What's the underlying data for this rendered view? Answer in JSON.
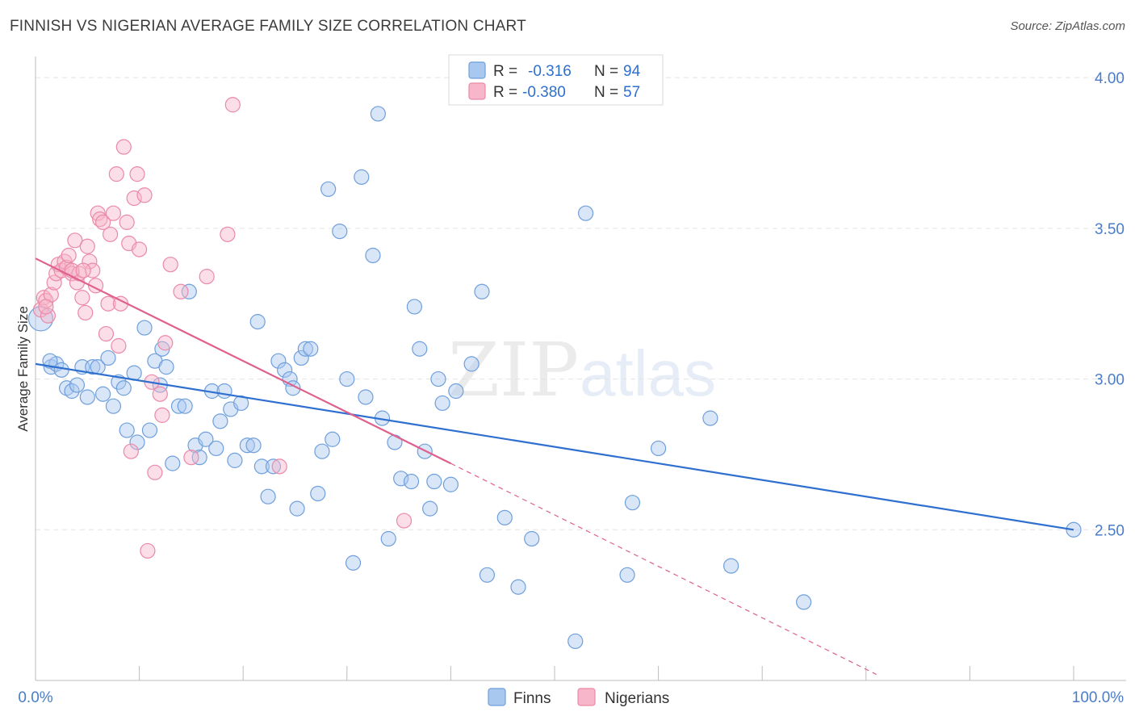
{
  "title": "FINNISH VS NIGERIAN AVERAGE FAMILY SIZE CORRELATION CHART",
  "source": "Source: ZipAtlas.com",
  "watermark": {
    "left": "ZIP",
    "right": "atlas"
  },
  "colors": {
    "finns_fill": "#a9c8ef",
    "finns_stroke": "#6f9fdc",
    "finns_line": "#2f6fcf",
    "nigerians_fill": "#f7b6c9",
    "nigerians_stroke": "#eb89a8",
    "nigerians_line": "#e0608d",
    "tick_label": "#4a7cc7",
    "grid": "#e3e3e3"
  },
  "stats_legend": [
    {
      "r_label": "R =",
      "r_value": "-0.316",
      "n_label": "N =",
      "n_value": "94"
    },
    {
      "r_label": "R =",
      "r_value": "-0.380",
      "n_label": "N =",
      "n_value": "57"
    }
  ],
  "chart_data": {
    "type": "scatter",
    "ylabel": "Average Family Size",
    "xlabel": "",
    "x_tick_labels": [
      "0.0%",
      "100.0%"
    ],
    "y_tick_labels": [
      "2.50",
      "3.00",
      "3.50",
      "4.00"
    ],
    "xlim": [
      0,
      100
    ],
    "ylim": [
      2.0,
      4.07
    ],
    "y_ticks": [
      2.5,
      3.0,
      3.5,
      4.0
    ],
    "grid": true,
    "legend": "bottom-center",
    "series": [
      {
        "name": "Finns",
        "trend": {
          "x": [
            0,
            100
          ],
          "y": [
            3.05,
            2.5
          ]
        },
        "points": [
          [
            0.5,
            3.2
          ],
          [
            1.5,
            3.04
          ],
          [
            2.0,
            3.05
          ],
          [
            2.5,
            3.03
          ],
          [
            3.0,
            2.97
          ],
          [
            3.5,
            2.96
          ],
          [
            4.0,
            2.98
          ],
          [
            4.5,
            3.04
          ],
          [
            5.0,
            2.94
          ],
          [
            5.5,
            3.04
          ],
          [
            6.0,
            3.04
          ],
          [
            6.5,
            2.95
          ],
          [
            7.0,
            3.07
          ],
          [
            7.5,
            2.91
          ],
          [
            8.0,
            2.99
          ],
          [
            8.5,
            2.97
          ],
          [
            8.8,
            2.83
          ],
          [
            9.5,
            3.02
          ],
          [
            9.8,
            2.79
          ],
          [
            10.5,
            3.17
          ],
          [
            11.0,
            2.83
          ],
          [
            11.5,
            3.06
          ],
          [
            12.0,
            2.98
          ],
          [
            12.2,
            3.1
          ],
          [
            12.6,
            3.04
          ],
          [
            13.2,
            2.72
          ],
          [
            13.8,
            2.91
          ],
          [
            14.4,
            2.91
          ],
          [
            14.8,
            3.29
          ],
          [
            15.4,
            2.78
          ],
          [
            15.8,
            2.74
          ],
          [
            16.4,
            2.8
          ],
          [
            17.0,
            2.96
          ],
          [
            17.4,
            2.77
          ],
          [
            17.8,
            2.86
          ],
          [
            18.2,
            2.96
          ],
          [
            18.8,
            2.9
          ],
          [
            19.2,
            2.73
          ],
          [
            19.8,
            2.92
          ],
          [
            20.4,
            2.78
          ],
          [
            21.0,
            2.78
          ],
          [
            21.4,
            3.19
          ],
          [
            21.8,
            2.71
          ],
          [
            22.4,
            2.61
          ],
          [
            22.9,
            2.71
          ],
          [
            23.4,
            3.06
          ],
          [
            24.0,
            3.03
          ],
          [
            24.5,
            3.0
          ],
          [
            24.8,
            2.97
          ],
          [
            25.2,
            2.57
          ],
          [
            25.6,
            3.07
          ],
          [
            26.0,
            3.1
          ],
          [
            26.5,
            3.1
          ],
          [
            27.2,
            2.62
          ],
          [
            27.6,
            2.76
          ],
          [
            28.2,
            3.63
          ],
          [
            28.6,
            2.8
          ],
          [
            29.3,
            3.49
          ],
          [
            30.0,
            3.0
          ],
          [
            30.6,
            2.39
          ],
          [
            31.4,
            3.67
          ],
          [
            31.8,
            2.94
          ],
          [
            32.5,
            3.41
          ],
          [
            33.0,
            3.88
          ],
          [
            33.4,
            2.87
          ],
          [
            34.0,
            2.47
          ],
          [
            34.6,
            2.79
          ],
          [
            35.2,
            2.67
          ],
          [
            36.2,
            2.66
          ],
          [
            36.5,
            3.24
          ],
          [
            37.0,
            3.1
          ],
          [
            37.5,
            2.76
          ],
          [
            38.0,
            2.57
          ],
          [
            38.4,
            2.66
          ],
          [
            38.8,
            3.0
          ],
          [
            39.2,
            2.92
          ],
          [
            40.0,
            2.65
          ],
          [
            40.5,
            2.96
          ],
          [
            42.0,
            3.05
          ],
          [
            43.0,
            3.29
          ],
          [
            43.5,
            2.35
          ],
          [
            45.2,
            2.54
          ],
          [
            46.5,
            2.31
          ],
          [
            47.8,
            2.47
          ],
          [
            52.0,
            2.13
          ],
          [
            53.0,
            3.55
          ],
          [
            57.0,
            2.35
          ],
          [
            57.5,
            2.59
          ],
          [
            60.0,
            2.77
          ],
          [
            65.0,
            2.87
          ],
          [
            67.0,
            2.38
          ],
          [
            74.0,
            2.26
          ],
          [
            100.0,
            2.5
          ],
          [
            1.4,
            3.06
          ]
        ]
      },
      {
        "name": "Nigerians",
        "trend": {
          "x": [
            0,
            40
          ],
          "y": [
            3.4,
            2.72
          ]
        },
        "dashed_extension": {
          "x": [
            40,
            81
          ],
          "y": [
            2.72,
            2.02
          ]
        },
        "points": [
          [
            0.5,
            3.23
          ],
          [
            0.8,
            3.27
          ],
          [
            1.0,
            3.26
          ],
          [
            1.2,
            3.21
          ],
          [
            1.5,
            3.28
          ],
          [
            1.8,
            3.32
          ],
          [
            2.0,
            3.35
          ],
          [
            2.2,
            3.38
          ],
          [
            2.5,
            3.36
          ],
          [
            2.8,
            3.39
          ],
          [
            3.0,
            3.37
          ],
          [
            3.2,
            3.41
          ],
          [
            3.5,
            3.35
          ],
          [
            3.8,
            3.46
          ],
          [
            4.0,
            3.32
          ],
          [
            4.2,
            3.35
          ],
          [
            4.5,
            3.27
          ],
          [
            4.8,
            3.22
          ],
          [
            5.0,
            3.44
          ],
          [
            5.2,
            3.39
          ],
          [
            5.5,
            3.36
          ],
          [
            5.8,
            3.31
          ],
          [
            6.0,
            3.55
          ],
          [
            6.2,
            3.53
          ],
          [
            6.5,
            3.52
          ],
          [
            6.8,
            3.15
          ],
          [
            7.0,
            3.25
          ],
          [
            7.2,
            3.48
          ],
          [
            7.5,
            3.55
          ],
          [
            7.8,
            3.68
          ],
          [
            8.0,
            3.11
          ],
          [
            8.2,
            3.25
          ],
          [
            8.5,
            3.77
          ],
          [
            8.8,
            3.52
          ],
          [
            9.0,
            3.45
          ],
          [
            9.2,
            2.76
          ],
          [
            9.5,
            3.6
          ],
          [
            9.8,
            3.68
          ],
          [
            10.0,
            3.43
          ],
          [
            10.5,
            3.61
          ],
          [
            10.8,
            2.43
          ],
          [
            11.2,
            2.99
          ],
          [
            11.5,
            2.69
          ],
          [
            12.0,
            2.95
          ],
          [
            12.2,
            2.88
          ],
          [
            12.5,
            3.12
          ],
          [
            13.0,
            3.38
          ],
          [
            14.0,
            3.29
          ],
          [
            15.0,
            2.74
          ],
          [
            16.5,
            3.34
          ],
          [
            18.5,
            3.48
          ],
          [
            19.0,
            3.91
          ],
          [
            23.5,
            2.71
          ],
          [
            35.5,
            2.53
          ],
          [
            1.0,
            3.24
          ],
          [
            3.5,
            3.36
          ],
          [
            4.6,
            3.36
          ]
        ]
      }
    ]
  }
}
